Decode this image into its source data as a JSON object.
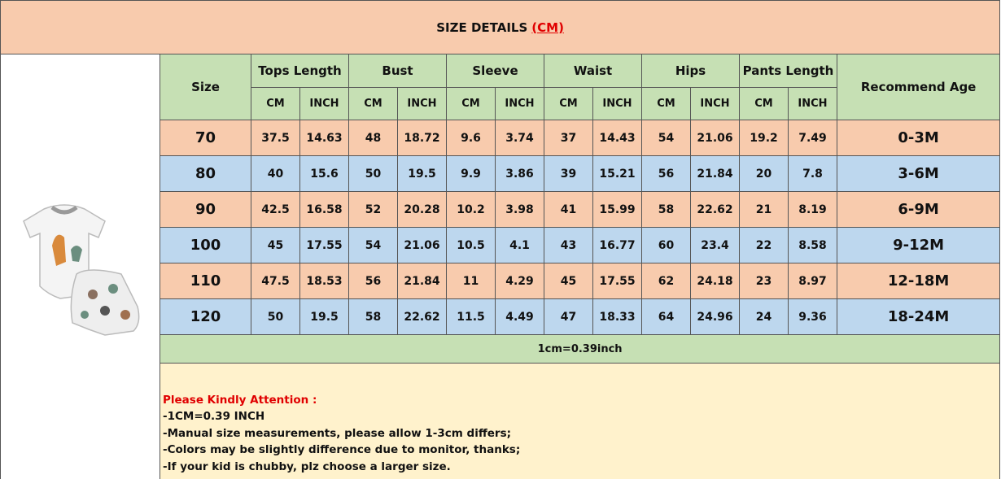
{
  "title": "SIZE DETAILS",
  "title_unit": "(CM)",
  "table": {
    "headers": [
      "Size",
      "Tops Length",
      "Bust",
      "Sleeve",
      "Waist",
      "Hips",
      "Pants Length",
      "Recommend Age"
    ],
    "subheaders": [
      "CM",
      "INCH",
      "CM",
      "INCH",
      "CM",
      "INCH",
      "CM",
      "INCH",
      "CM",
      "INCH",
      "CM",
      "INCH"
    ],
    "rows": [
      [
        "70",
        "37.5",
        "14.63",
        "48",
        "18.72",
        "9.6",
        "3.74",
        "37",
        "14.43",
        "54",
        "21.06",
        "19.2",
        "7.49",
        "0-3M"
      ],
      [
        "80",
        "40",
        "15.6",
        "50",
        "19.5",
        "9.9",
        "3.86",
        "39",
        "15.21",
        "56",
        "21.84",
        "20",
        "7.8",
        "3-6M"
      ],
      [
        "90",
        "42.5",
        "16.58",
        "52",
        "20.28",
        "10.2",
        "3.98",
        "41",
        "15.99",
        "58",
        "22.62",
        "21",
        "8.19",
        "6-9M"
      ],
      [
        "100",
        "45",
        "17.55",
        "54",
        "21.06",
        "10.5",
        "4.1",
        "43",
        "16.77",
        "60",
        "23.4",
        "22",
        "8.58",
        "9-12M"
      ],
      [
        "110",
        "47.5",
        "18.53",
        "56",
        "21.84",
        "11",
        "4.29",
        "45",
        "17.55",
        "62",
        "24.18",
        "23",
        "8.97",
        "12-18M"
      ],
      [
        "120",
        "50",
        "19.5",
        "58",
        "22.62",
        "11.5",
        "4.49",
        "47",
        "18.33",
        "64",
        "24.96",
        "24",
        "9.36",
        "18-24M"
      ]
    ],
    "note": "1cm=0.39inch"
  },
  "attention": {
    "heading": "Please Kindly Attention :",
    "lines": [
      "-1CM=0.39 INCH",
      "-Manual size measurements, please allow 1-3cm differs;",
      "-Colors may be slightly difference due to monitor, thanks;",
      "-If your kid is chubby, plz choose a larger size."
    ]
  }
}
